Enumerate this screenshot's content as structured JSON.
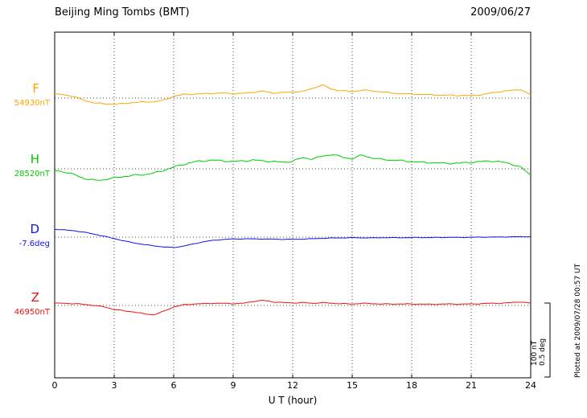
{
  "chart_data": {
    "type": "line",
    "title": "Beijing Ming Tombs (BMT)",
    "date": "2009/06/27",
    "xlabel": "U T (hour)",
    "xlim": [
      0,
      24
    ],
    "x_ticks": [
      0,
      3,
      6,
      9,
      12,
      15,
      18,
      21,
      24
    ],
    "x_step_hours": 0.5,
    "grid": "dotted vertical lines every 3 hours, dotted horizontal baseline per channel",
    "scale_per_division": {
      "nT": 100,
      "deg": 0.5
    },
    "series": [
      {
        "name": "F",
        "unit": "nT",
        "baseline": 54930,
        "baseline_label": "54930nT",
        "color": "#FFA500",
        "offsets": [
          5.5,
          4.5,
          2,
          -3.5,
          -6.5,
          -8,
          -8.5,
          -7.5,
          -6,
          -5.5,
          -5,
          -3,
          2.5,
          5,
          5.5,
          6,
          6.5,
          7,
          6,
          6.5,
          8,
          9.5,
          7,
          7.5,
          8.5,
          9,
          13.5,
          18,
          12,
          10,
          9,
          11,
          10,
          8.5,
          7,
          6,
          5.5,
          5,
          4.5,
          4,
          4,
          3.5,
          3.5,
          4.5,
          7,
          9,
          10.5,
          12,
          4
        ]
      },
      {
        "name": "H",
        "unit": "nT",
        "baseline": 28520,
        "baseline_label": "28520nT",
        "color": "#00CC00",
        "offsets": [
          -2,
          -4.5,
          -8,
          -13.5,
          -16,
          -15,
          -12.5,
          -10.5,
          -9,
          -8,
          -6,
          -2,
          2.5,
          6,
          9.5,
          11,
          12,
          11,
          10,
          11,
          12,
          11,
          10,
          9,
          10.5,
          15.5,
          13.5,
          17.5,
          20,
          16,
          14,
          19,
          15,
          13,
          12,
          11,
          10,
          9,
          8.5,
          8,
          7.5,
          8,
          9,
          10,
          11,
          9.5,
          7,
          2,
          -8.5
        ]
      },
      {
        "name": "D",
        "unit": "deg",
        "baseline": -7.6,
        "baseline_label": "-7.6deg",
        "color": "#1010EE",
        "offsets": [
          0.055,
          0.05,
          0.044,
          0.034,
          0.02,
          0.006,
          -0.01,
          -0.026,
          -0.04,
          -0.051,
          -0.06,
          -0.068,
          -0.072,
          -0.062,
          -0.047,
          -0.032,
          -0.022,
          -0.016,
          -0.013,
          -0.012,
          -0.012,
          -0.013,
          -0.014,
          -0.015,
          -0.015,
          -0.014,
          -0.011,
          -0.008,
          -0.006,
          -0.005,
          -0.004,
          -0.005,
          -0.005,
          -0.004,
          -0.004,
          -0.004,
          -0.003,
          -0.003,
          -0.003,
          -0.002,
          -0.002,
          -0.002,
          -0.001,
          0,
          0,
          0.001,
          0.002,
          0.003,
          0.004
        ]
      },
      {
        "name": "Z",
        "unit": "nT",
        "baseline": 46950,
        "baseline_label": "46950nT",
        "color": "#EE1111",
        "offsets": [
          3,
          3,
          2.5,
          1.5,
          0,
          -2,
          -5.5,
          -7.5,
          -9,
          -11.5,
          -13,
          -8,
          -2,
          1,
          2,
          2.5,
          3,
          3,
          2.5,
          3,
          5.5,
          7,
          5,
          4,
          3.5,
          4,
          3,
          4,
          3,
          2.5,
          2,
          3,
          2.5,
          2,
          2,
          2,
          2,
          2,
          1.5,
          2,
          2,
          2,
          2,
          2.5,
          3,
          3,
          4,
          5,
          3
        ]
      }
    ]
  },
  "scale_bar": {
    "nt_label": "100 nT",
    "deg_label": "0.5 deg"
  },
  "footer": {
    "plotted_at": "Plotted at 2009/07/28 00:57 UT"
  }
}
